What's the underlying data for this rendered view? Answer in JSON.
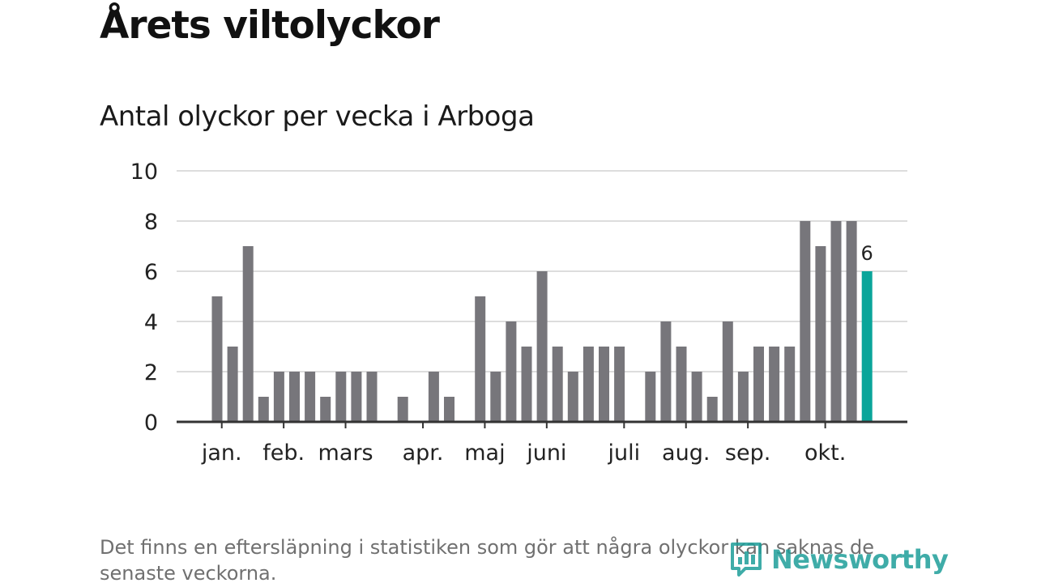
{
  "title": "Årets viltolyckor",
  "subtitle": "Antal olyckor per vecka i Arboga",
  "footnote": "Det finns en eftersläpning i statistiken som gör att några olyckor kan saknas de senaste veckorna.",
  "logo": {
    "text": "Newsworthy",
    "icon": "newsworthy-logo-icon",
    "color": "#1e9e9a"
  },
  "chart_data": {
    "type": "bar",
    "title": "Antal olyckor per vecka i Arboga",
    "xlabel": "",
    "ylabel": "",
    "ylim": [
      0,
      10
    ],
    "yticks": [
      0,
      2,
      4,
      6,
      8,
      10
    ],
    "grid": true,
    "colors": {
      "bar": "#77767b",
      "highlight": "#0aa59a",
      "grid": "#dddddd",
      "axis": "#333333"
    },
    "weeks": [
      1,
      2,
      3,
      4,
      5,
      6,
      7,
      8,
      9,
      10,
      11,
      12,
      13,
      14,
      15,
      16,
      17,
      18,
      19,
      20,
      21,
      22,
      23,
      24,
      25,
      26,
      27,
      28,
      29,
      30,
      31,
      32,
      33,
      34,
      35,
      36,
      37,
      38,
      39,
      40,
      41,
      42,
      43
    ],
    "values": [
      5,
      3,
      7,
      1,
      2,
      2,
      2,
      1,
      2,
      2,
      2,
      0,
      1,
      0,
      2,
      1,
      0,
      5,
      2,
      4,
      3,
      6,
      3,
      2,
      3,
      3,
      3,
      0,
      2,
      4,
      3,
      2,
      1,
      4,
      2,
      3,
      3,
      3,
      8,
      7,
      8,
      8,
      6
    ],
    "highlight_index": 42,
    "highlight_label": "6",
    "month_labels": [
      {
        "label": "jan.",
        "week": 1.3
      },
      {
        "label": "feb.",
        "week": 5.3
      },
      {
        "label": "mars",
        "week": 9.3
      },
      {
        "label": "apr.",
        "week": 14.3
      },
      {
        "label": "maj",
        "week": 18.3
      },
      {
        "label": "juni",
        "week": 22.3
      },
      {
        "label": "juli",
        "week": 27.3
      },
      {
        "label": "aug.",
        "week": 31.3
      },
      {
        "label": "sep.",
        "week": 35.3
      },
      {
        "label": "okt.",
        "week": 40.3
      }
    ]
  }
}
